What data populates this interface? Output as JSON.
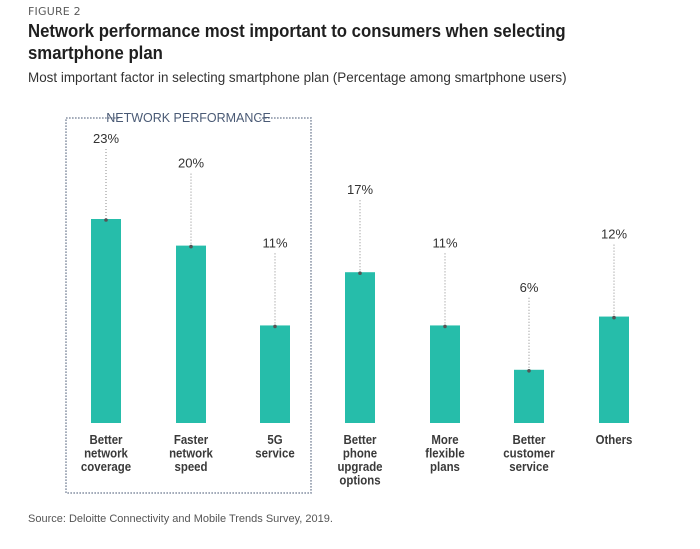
{
  "figure_label": "FIGURE 2",
  "title": "Network performance most important to consumers when selecting smartphone plan",
  "subtitle": "Most important factor in selecting smartphone plan (Percentage among smartphone users)",
  "source": "Source: Deloitte Connectivity and Mobile Trends Survey, 2019.",
  "colors": {
    "bar": "#26bdaa",
    "text": "#333333",
    "connector": "#8a8a8a",
    "box": "#4a5a75"
  },
  "chart_data": {
    "type": "bar",
    "title": "Network performance most important to consumers when selecting smartphone plan",
    "subtitle": "Most important factor in selecting smartphone plan (Percentage among smartphone users)",
    "xlabel": "",
    "ylabel": "Percentage among smartphone users",
    "ylim": [
      0,
      25
    ],
    "grid": false,
    "categories": [
      [
        "Better",
        "network",
        "coverage"
      ],
      [
        "Faster",
        "network",
        "speed"
      ],
      [
        "5G",
        "service"
      ],
      [
        "Better",
        "phone",
        "upgrade",
        "options"
      ],
      [
        "More",
        "flexible",
        "plans"
      ],
      [
        "Better",
        "customer",
        "service"
      ],
      [
        "Others"
      ]
    ],
    "values": [
      23,
      20,
      11,
      17,
      11,
      6,
      12
    ],
    "value_labels": [
      "23%",
      "20%",
      "11%",
      "17%",
      "11%",
      "6%",
      "12%"
    ],
    "group_annotation": {
      "label": "NETWORK PERFORMANCE",
      "categories_indices": [
        0,
        1,
        2
      ]
    }
  }
}
